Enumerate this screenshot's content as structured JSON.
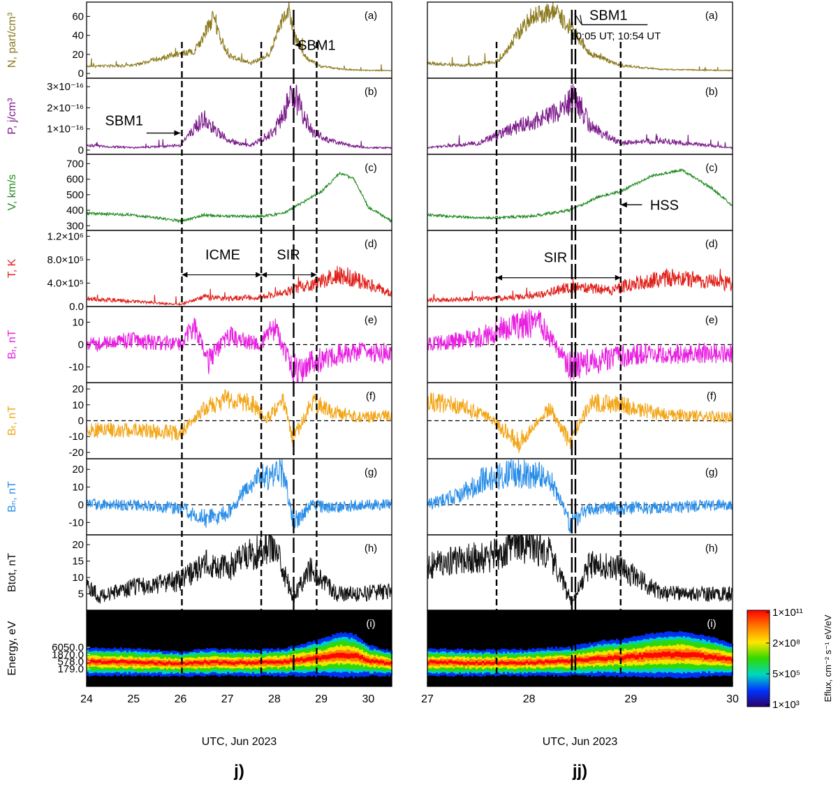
{
  "figure": {
    "columns": [
      {
        "id": "j",
        "caption": "j)",
        "xlabel": "UTC, Jun 2023",
        "xlim": [
          24,
          30.5
        ],
        "xticks": [
          24,
          25,
          26,
          27,
          28,
          29,
          30
        ],
        "boundaries": [
          {
            "x": 26.03,
            "style": "short"
          },
          {
            "x": 27.72,
            "style": "short"
          },
          {
            "x": 28.41,
            "style": "long"
          },
          {
            "x": 28.9,
            "style": "short"
          }
        ]
      },
      {
        "id": "jj",
        "caption": "jj)",
        "xlabel": "UTC, Jun 2023",
        "xlim": [
          27,
          30
        ],
        "xticks": [
          27,
          28,
          29,
          30
        ],
        "boundaries": [
          {
            "x": 27.68,
            "style": "short"
          },
          {
            "x": 28.42,
            "style": "long"
          },
          {
            "x": 28.455,
            "style": "long"
          },
          {
            "x": 28.9,
            "style": "short"
          }
        ]
      }
    ],
    "panels": [
      {
        "key": "a",
        "tag": "(a)",
        "ylabel": "N, part/cm³",
        "color": "#8b7a1e",
        "ylim": [
          -5,
          75
        ],
        "yticks": [
          "0",
          "20",
          "40",
          "60"
        ],
        "ytick_values": [
          0,
          20,
          40,
          60
        ]
      },
      {
        "key": "b",
        "tag": "(b)",
        "ylabel": "P, j/cm³",
        "color": "#7b1a8a",
        "ylim": [
          -2e-17,
          3.4e-16
        ],
        "yticks": [
          "0",
          "1×10⁻¹⁶",
          "2×10⁻¹⁶",
          "3×10⁻¹⁶"
        ],
        "ytick_values": [
          0,
          1e-16,
          2e-16,
          3e-16
        ]
      },
      {
        "key": "c",
        "tag": "(c)",
        "ylabel": "V, km/s",
        "color": "#1f8a1f",
        "ylim": [
          270,
          760
        ],
        "yticks": [
          "300",
          "400",
          "500",
          "600",
          "700"
        ],
        "ytick_values": [
          300,
          400,
          500,
          600,
          700
        ]
      },
      {
        "key": "d",
        "tag": "(d)",
        "ylabel": "T, K",
        "color": "#e0201a",
        "ylim": [
          0,
          1300000.0
        ],
        "yticks": [
          "0.0",
          "4.0×10⁵",
          "8.0×10⁵",
          "1.2×10⁶"
        ],
        "ytick_values": [
          0,
          400000.0,
          800000.0,
          1200000.0
        ]
      },
      {
        "key": "e",
        "tag": "(e)",
        "ylabel": "Bᵣ, nT",
        "color": "#e81ee0",
        "ylim": [
          -17,
          17
        ],
        "yticks": [
          "-10",
          "0",
          "10"
        ],
        "ytick_values": [
          -10,
          0,
          10
        ],
        "zero_line": true
      },
      {
        "key": "f",
        "tag": "(f)",
        "ylabel": "Bₜ, nT",
        "color": "#f2a516",
        "ylim": [
          -24,
          24
        ],
        "yticks": [
          "-20",
          "-10",
          "0",
          "10",
          "20"
        ],
        "ytick_values": [
          -20,
          -10,
          0,
          10,
          20
        ],
        "zero_line": true
      },
      {
        "key": "g",
        "tag": "(g)",
        "ylabel": "Bₙ, nT",
        "color": "#2a8ee8",
        "ylim": [
          -17,
          26
        ],
        "yticks": [
          "-10",
          "0",
          "10",
          "20"
        ],
        "ytick_values": [
          -10,
          0,
          10,
          20
        ],
        "zero_line": true
      },
      {
        "key": "h",
        "tag": "(h)",
        "ylabel": "Btot, nT",
        "color": "#111111",
        "ylim": [
          0,
          23
        ],
        "yticks": [
          "5",
          "10",
          "15",
          "20"
        ],
        "ytick_values": [
          5,
          10,
          15,
          20
        ]
      },
      {
        "key": "i",
        "tag": "(i)",
        "ylabel": "Energy, eV",
        "color": "#000000",
        "yticks": [
          "179.0",
          "578.0",
          "1870.0",
          "6050.0"
        ],
        "ytick_values": [
          179,
          578,
          1870,
          6050
        ],
        "spectrogram": true
      }
    ],
    "annotations": {
      "j": [
        {
          "text": "SBM1",
          "panel": "a",
          "x": 28.9,
          "y": 30,
          "arrow_to_x": 28.43
        },
        {
          "text": "SBM1",
          "panel": "b",
          "x": 24.8,
          "y": 1.4e-16,
          "arrow_to_x": 26.0
        },
        {
          "text": "ICME",
          "panel": "d",
          "x": 26.9,
          "y": 900000.0,
          "span": [
            26.03,
            27.72
          ]
        },
        {
          "text": "SIR",
          "panel": "d",
          "x": 28.3,
          "y": 900000.0,
          "span": [
            27.72,
            28.9
          ]
        }
      ],
      "jj": [
        {
          "text": "SBM1",
          "panel": "a",
          "x": 28.78,
          "y": 60,
          "sub": "10:05 UT; 10:54 UT"
        },
        {
          "text": "SIR",
          "panel": "d",
          "x": 28.26,
          "y": 850000.0,
          "span": [
            27.68,
            28.9
          ]
        },
        {
          "text": "HSS",
          "panel": "c",
          "x": 29.33,
          "y": 435,
          "arrow_to_x": 28.9
        }
      ]
    },
    "colorbar": {
      "label": "Eflux, cm⁻² s⁻¹ eV/eV",
      "ticks": [
        "1×10¹¹",
        "2×10⁸",
        "5×10⁵",
        "1×10³"
      ],
      "colors": [
        "#ff0000",
        "#ff7a00",
        "#ffe600",
        "#2fd900",
        "#00d8c0",
        "#0033ff",
        "#2a006a"
      ]
    }
  },
  "chart_data": [
    {
      "type": "line",
      "title": "",
      "xlabel": "UTC, Jun 2023",
      "xlim": [
        24,
        30.5
      ],
      "series": [
        {
          "name": "N, part/cm³",
          "x": [
            24,
            25,
            25.8,
            26.3,
            26.7,
            27.0,
            27.5,
            27.9,
            28.1,
            28.3,
            28.45,
            28.7,
            29.0,
            29.5,
            30.0,
            30.5
          ],
          "y": [
            7,
            8,
            18,
            22,
            55,
            18,
            10,
            20,
            45,
            64,
            35,
            15,
            7,
            4,
            3,
            3
          ]
        },
        {
          "name": "P, j/cm³",
          "x": [
            24,
            25,
            26.0,
            26.5,
            27.0,
            27.5,
            28.0,
            28.4,
            28.8,
            29.2,
            29.6,
            30.0,
            30.5
          ],
          "y": [
            2e-17,
            1e-17,
            2e-17,
            1.4e-16,
            4e-17,
            2e-17,
            8e-17,
            2.4e-16,
            8e-17,
            4e-17,
            2e-17,
            1e-17,
            1e-17
          ]
        },
        {
          "name": "V, km/s",
          "x": [
            24,
            25,
            26.0,
            26.5,
            27.0,
            27.7,
            28.2,
            28.6,
            29.0,
            29.4,
            29.7,
            30.0,
            30.5
          ],
          "y": [
            380,
            370,
            330,
            370,
            360,
            360,
            380,
            450,
            520,
            640,
            600,
            420,
            330
          ]
        },
        {
          "name": "T, K",
          "x": [
            24,
            25,
            26.0,
            26.5,
            27.0,
            27.7,
            28.2,
            28.6,
            29.0,
            29.4,
            29.8,
            30.5
          ],
          "y": [
            120000.0,
            80000.0,
            30000.0,
            150000.0,
            120000.0,
            150000.0,
            220000.0,
            320000.0,
            380000.0,
            500000.0,
            400000.0,
            200000.0
          ]
        },
        {
          "name": "Br, nT",
          "x": [
            24,
            25,
            26.0,
            26.3,
            26.6,
            27.0,
            27.7,
            28.0,
            28.4,
            28.8,
            29.2,
            29.8,
            30.5
          ],
          "y": [
            0,
            2,
            0,
            9,
            -8,
            4,
            0,
            8,
            -12,
            -8,
            -5,
            -3,
            -4
          ]
        },
        {
          "name": "Bt, nT",
          "x": [
            24,
            25,
            26.0,
            26.5,
            27.0,
            27.5,
            27.8,
            28.2,
            28.4,
            28.8,
            29.2,
            29.8,
            30.5
          ],
          "y": [
            -6,
            -6,
            -8,
            8,
            14,
            12,
            0,
            12,
            -12,
            12,
            6,
            2,
            3
          ]
        },
        {
          "name": "Bn, nT",
          "x": [
            24,
            25,
            26.0,
            26.5,
            27.0,
            27.5,
            27.8,
            28.2,
            28.4,
            28.8,
            29.2,
            29.8,
            30.5
          ],
          "y": [
            0,
            0,
            -2,
            -8,
            -5,
            12,
            16,
            18,
            -10,
            0,
            -2,
            0,
            0
          ]
        },
        {
          "name": "Btot, nT",
          "x": [
            24,
            24.3,
            25,
            26.0,
            26.5,
            27.0,
            27.5,
            28.0,
            28.4,
            28.8,
            29.3,
            29.8,
            30.5
          ],
          "y": [
            8,
            4,
            7,
            9,
            14,
            13,
            17,
            19,
            4,
            13,
            5,
            5,
            6
          ]
        }
      ]
    },
    {
      "type": "line",
      "title": "",
      "xlabel": "UTC, Jun 2023",
      "xlim": [
        27,
        30
      ],
      "series": [
        {
          "name": "N, part/cm³",
          "x": [
            27,
            27.4,
            27.7,
            28.0,
            28.25,
            28.42,
            28.6,
            28.9,
            29.3,
            30.0
          ],
          "y": [
            10,
            8,
            12,
            55,
            62,
            45,
            20,
            8,
            4,
            3
          ]
        },
        {
          "name": "P, j/cm³",
          "x": [
            27,
            27.5,
            28.0,
            28.3,
            28.45,
            28.6,
            28.9,
            29.3,
            30.0
          ],
          "y": [
            1e-17,
            3e-17,
            1.2e-16,
            1.6e-16,
            2.3e-16,
            1e-16,
            3e-17,
            4e-17,
            1e-17
          ]
        },
        {
          "name": "V, km/s",
          "x": [
            27,
            27.5,
            28.0,
            28.4,
            28.7,
            28.9,
            29.2,
            29.5,
            29.8,
            30.0
          ],
          "y": [
            370,
            350,
            360,
            400,
            490,
            520,
            620,
            660,
            540,
            430
          ]
        },
        {
          "name": "T, K",
          "x": [
            27,
            27.5,
            28.0,
            28.4,
            28.8,
            29.0,
            29.4,
            30.0
          ],
          "y": [
            100000.0,
            120000.0,
            150000.0,
            300000.0,
            250000.0,
            350000.0,
            450000.0,
            350000.0
          ]
        },
        {
          "name": "Br, nT",
          "x": [
            27,
            27.5,
            27.8,
            28.1,
            28.4,
            28.6,
            28.9,
            29.3,
            30.0
          ],
          "y": [
            0,
            3,
            8,
            10,
            -10,
            -8,
            -5,
            -4,
            -4
          ]
        },
        {
          "name": "Bt, nT",
          "x": [
            27,
            27.3,
            27.6,
            27.9,
            28.2,
            28.4,
            28.6,
            28.9,
            29.3,
            30.0
          ],
          "y": [
            12,
            10,
            2,
            -14,
            8,
            -14,
            12,
            10,
            4,
            2
          ]
        },
        {
          "name": "Bn, nT",
          "x": [
            27,
            27.3,
            27.6,
            27.9,
            28.2,
            28.4,
            28.6,
            29.0,
            30.0
          ],
          "y": [
            0,
            5,
            16,
            18,
            16,
            -10,
            -2,
            -2,
            0
          ]
        },
        {
          "name": "Btot, nT",
          "x": [
            27,
            27.3,
            27.6,
            27.9,
            28.2,
            28.42,
            28.6,
            28.9,
            29.3,
            30.0
          ],
          "y": [
            13,
            16,
            16,
            20,
            18,
            2,
            14,
            13,
            5,
            5
          ]
        }
      ]
    }
  ]
}
